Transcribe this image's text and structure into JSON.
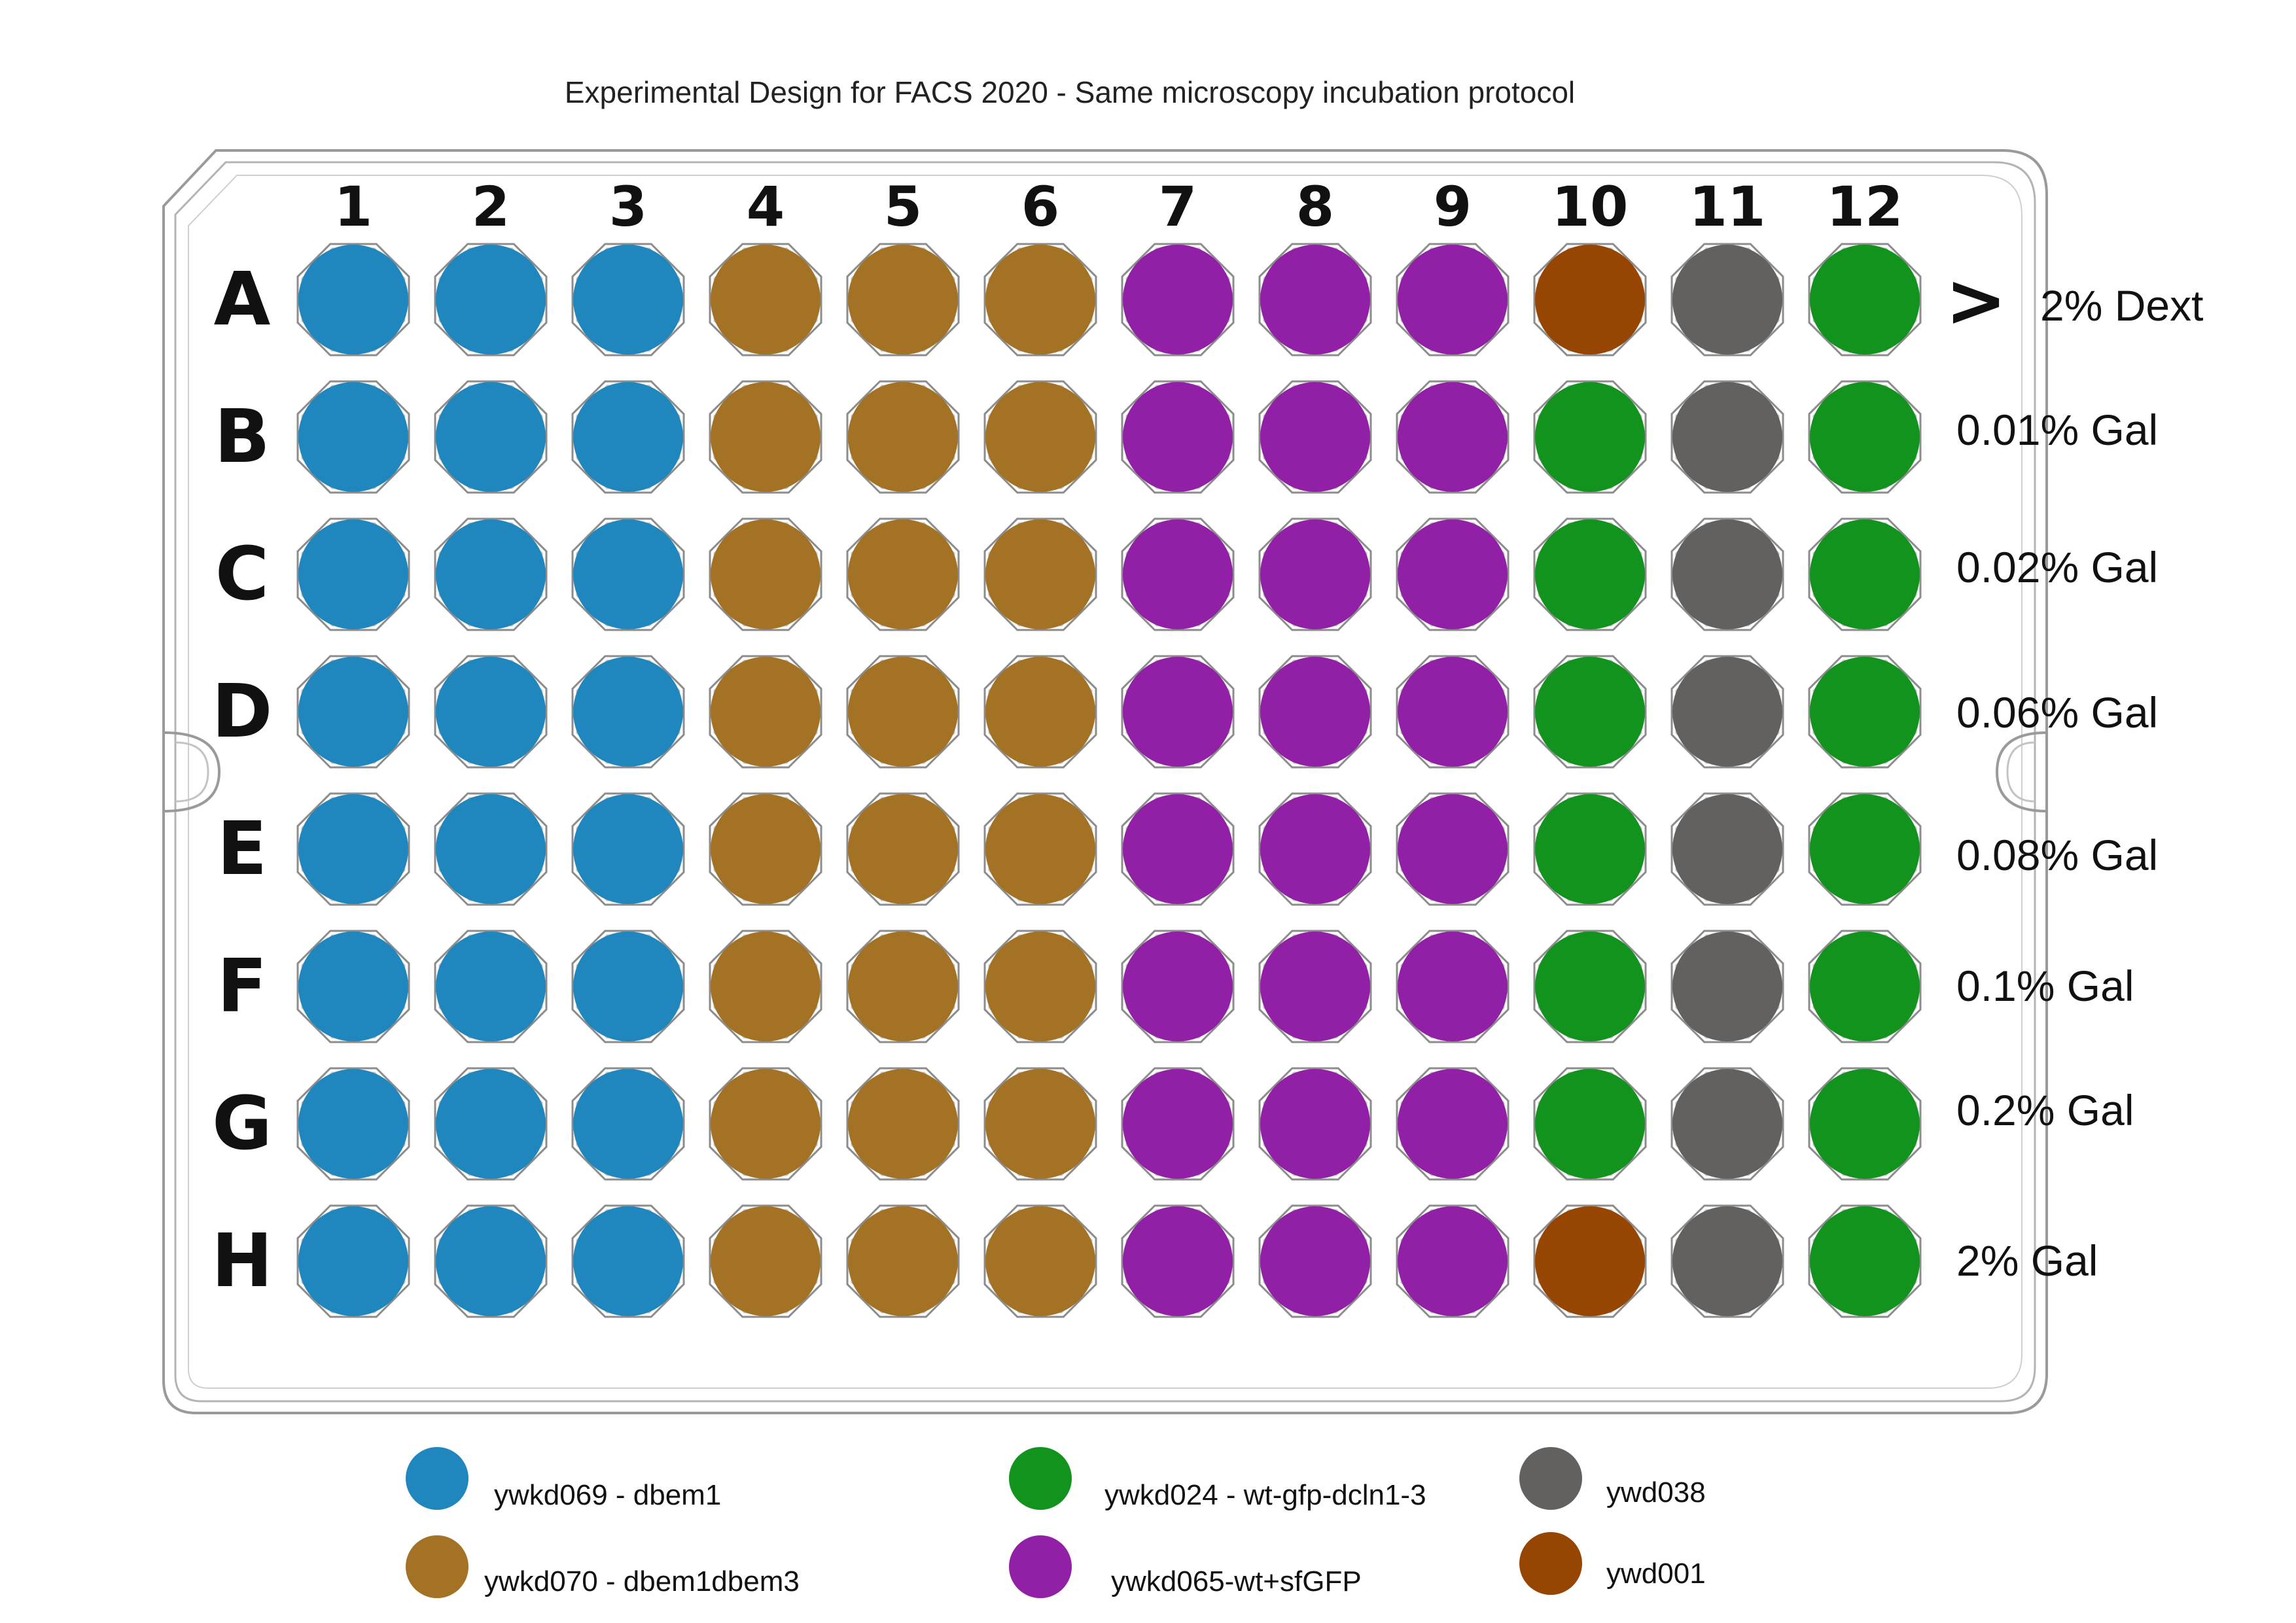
{
  "title": "Experimental Design  for FACS  2020 -  Same microscopy incubation protocol",
  "columns": [
    "1",
    "2",
    "3",
    "4",
    "5",
    "6",
    "7",
    "8",
    "9",
    "10",
    "11",
    "12"
  ],
  "rows": [
    "A",
    "B",
    "C",
    "D",
    "E",
    "F",
    "G",
    "H"
  ],
  "row_arrow": ">",
  "conditions": [
    "2% Dext",
    "0.01% Gal",
    "0.02% Gal",
    "0.06% Gal",
    "0.08% Gal",
    "0.1% Gal",
    "0.2% Gal",
    "2% Gal"
  ],
  "strains": [
    {
      "id": "ywkd069",
      "label": "ywkd069 - dbem1",
      "color": "#1f87bd"
    },
    {
      "id": "ywkd070",
      "label": "ywkd070 - dbem1dbem3",
      "color": "#a37224"
    },
    {
      "id": "ywkd024",
      "label": "ywkd024 - wt-gfp-dcln1-3",
      "color": "#11931e"
    },
    {
      "id": "ywkd065",
      "label": "ywkd065-wt+sfGFP",
      "color": "#9120a6"
    },
    {
      "id": "ywd038",
      "label": "ywd038",
      "color": "#636160"
    },
    {
      "id": "ywd001",
      "label": "ywd001",
      "color": "#974502"
    }
  ],
  "plate_layout": {
    "A": [
      "ywkd069",
      "ywkd069",
      "ywkd069",
      "ywkd070",
      "ywkd070",
      "ywkd070",
      "ywkd065",
      "ywkd065",
      "ywkd065",
      "ywd001",
      "ywd038",
      "ywkd024"
    ],
    "B": [
      "ywkd069",
      "ywkd069",
      "ywkd069",
      "ywkd070",
      "ywkd070",
      "ywkd070",
      "ywkd065",
      "ywkd065",
      "ywkd065",
      "ywkd024",
      "ywd038",
      "ywkd024"
    ],
    "C": [
      "ywkd069",
      "ywkd069",
      "ywkd069",
      "ywkd070",
      "ywkd070",
      "ywkd070",
      "ywkd065",
      "ywkd065",
      "ywkd065",
      "ywkd024",
      "ywd038",
      "ywkd024"
    ],
    "D": [
      "ywkd069",
      "ywkd069",
      "ywkd069",
      "ywkd070",
      "ywkd070",
      "ywkd070",
      "ywkd065",
      "ywkd065",
      "ywkd065",
      "ywkd024",
      "ywd038",
      "ywkd024"
    ],
    "E": [
      "ywkd069",
      "ywkd069",
      "ywkd069",
      "ywkd070",
      "ywkd070",
      "ywkd070",
      "ywkd065",
      "ywkd065",
      "ywkd065",
      "ywkd024",
      "ywd038",
      "ywkd024"
    ],
    "F": [
      "ywkd069",
      "ywkd069",
      "ywkd069",
      "ywkd070",
      "ywkd070",
      "ywkd070",
      "ywkd065",
      "ywkd065",
      "ywkd065",
      "ywkd024",
      "ywd038",
      "ywkd024"
    ],
    "G": [
      "ywkd069",
      "ywkd069",
      "ywkd069",
      "ywkd070",
      "ywkd070",
      "ywkd070",
      "ywkd065",
      "ywkd065",
      "ywkd065",
      "ywkd024",
      "ywd038",
      "ywkd024"
    ],
    "H": [
      "ywkd069",
      "ywkd069",
      "ywkd069",
      "ywkd070",
      "ywkd070",
      "ywkd070",
      "ywkd065",
      "ywkd065",
      "ywkd065",
      "ywd001",
      "ywd038",
      "ywkd024"
    ]
  }
}
